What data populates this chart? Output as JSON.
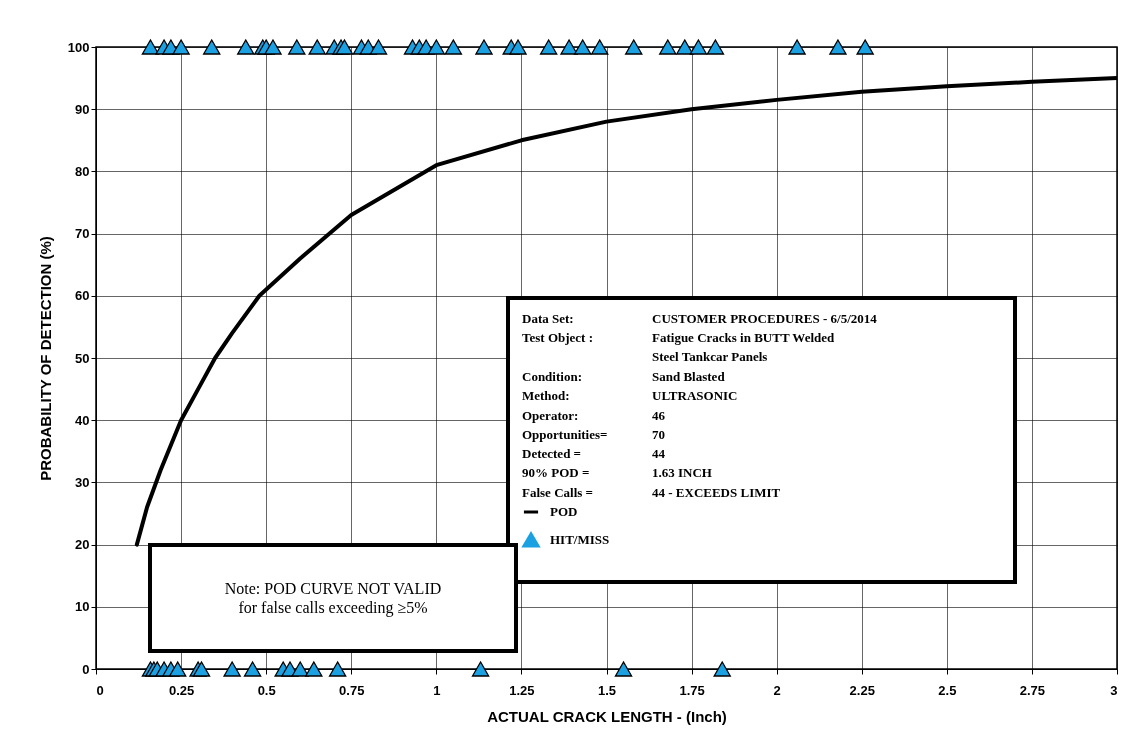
{
  "chart_data": {
    "type": "scatter",
    "xlabel": "ACTUAL CRACK LENGTH - (Inch)",
    "ylabel": "PROBABILITY OF DETECTION (%)",
    "xlim": [
      0,
      3
    ],
    "ylim": [
      0,
      100
    ],
    "xticks": [
      0,
      0.25,
      0.5,
      0.75,
      1,
      1.25,
      1.5,
      1.75,
      2,
      2.25,
      2.5,
      2.75,
      3
    ],
    "yticks": [
      0,
      10,
      20,
      30,
      40,
      50,
      60,
      70,
      80,
      90,
      100
    ],
    "grid": true,
    "legend": "bottom right",
    "marker": "triangle",
    "series": [
      {
        "name": "POD",
        "type": "line",
        "marker": "none",
        "color": "#000000",
        "x": [
          0.12,
          0.15,
          0.19,
          0.25,
          0.3,
          0.35,
          0.4,
          0.48,
          0.6,
          0.75,
          1,
          1.25,
          1.5,
          1.75,
          2,
          2.25,
          2.5,
          2.75,
          3
        ],
        "values": [
          20,
          26,
          32,
          40,
          45,
          50,
          54,
          60,
          66,
          73,
          81,
          85,
          88,
          90,
          91.5,
          92.8,
          93.7,
          94.4,
          95
        ]
      },
      {
        "name": "HIT/MISS",
        "color": "#1ba1e2",
        "x": [
          0.16,
          0.2,
          0.22,
          0.25,
          0.34,
          0.44,
          0.49,
          0.5,
          0.52,
          0.59,
          0.65,
          0.7,
          0.72,
          0.73,
          0.78,
          0.8,
          0.83,
          0.93,
          0.95,
          0.97,
          1,
          1.05,
          1.14,
          1.22,
          1.24,
          1.33,
          1.39,
          1.43,
          1.48,
          1.58,
          1.68,
          1.73,
          1.77,
          1.82,
          2.06,
          2.18,
          2.26,
          0.16,
          0.17,
          0.18,
          0.2,
          0.22,
          0.24,
          0.3,
          0.31,
          0.4,
          0.46,
          0.55,
          0.57,
          0.6,
          0.64,
          0.71,
          1.13,
          1.55,
          1.84
        ],
        "values": [
          100,
          100,
          100,
          100,
          100,
          100,
          100,
          100,
          100,
          100,
          100,
          100,
          100,
          100,
          100,
          100,
          100,
          100,
          100,
          100,
          100,
          100,
          100,
          100,
          100,
          100,
          100,
          100,
          100,
          100,
          100,
          100,
          100,
          100,
          100,
          100,
          100,
          0,
          0,
          0,
          0,
          0,
          0,
          0,
          0,
          0,
          0,
          0,
          0,
          0,
          0,
          0,
          0,
          0,
          0
        ]
      }
    ],
    "annotations": [
      "Data Set:",
      "CUSTOMER PROCEDURES - 6/5/2014",
      "Test Object :",
      "Fatigue Cracks in BUTT Welded\nSteel Tankcar Panels",
      "Condition:",
      "Sand Blasted",
      "Method:",
      "ULTRASONIC",
      "Operator:",
      "46",
      "Opportunities=",
      "70",
      "Detected =",
      "44",
      "90% POD =",
      "1.63 INCH",
      "False Calls =",
      "44  - EXCEEDS LIMIT",
      "Note: POD CURVE NOT VALID\nfor false calls exceeding ≥5%"
    ]
  }
}
